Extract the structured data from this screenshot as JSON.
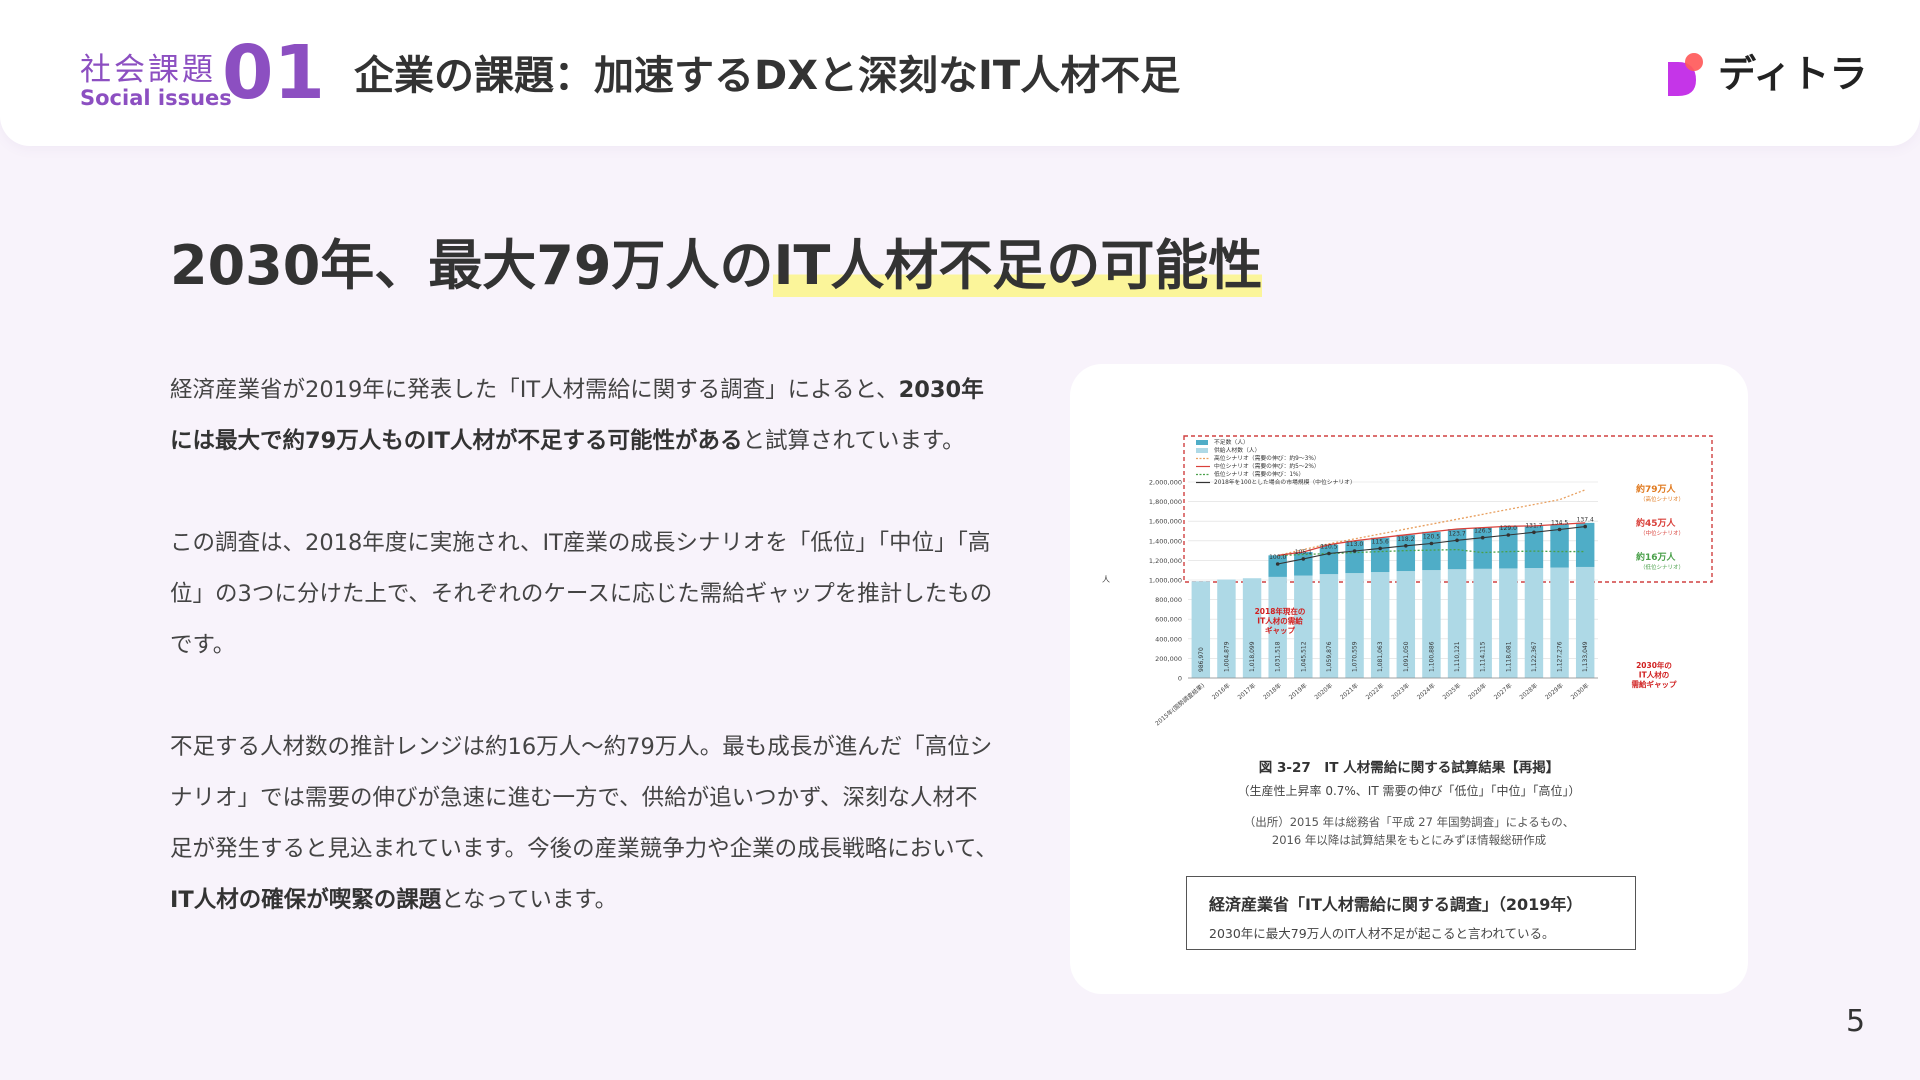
{
  "header": {
    "section_jp": "社会課題",
    "section_en": "Social issues",
    "section_num": "01",
    "title": "企業の課題：加速するDXと深刻なIT人材不足",
    "logo_text": "ディトラ",
    "logo_color": "#c535e8",
    "logo_dot_color": "#ff5a5a"
  },
  "main": {
    "title_prefix": "2030年、最大79万人の",
    "title_highlight": "IT人材不足の可能性",
    "p1_a": "経済産業省が2019年に発表した「IT人材需給に関する調査」によると、",
    "p1_b": "2030年には最大で約79万人ものIT人材が不足する可能性がある",
    "p1_c": "と試算されています。",
    "p2": " この調査は、2018年度に実施され、IT産業の成長シナリオを「低位」「中位」「高位」の3つに分けた上で、それぞれのケースに応じた需給ギャップを推計したものです。",
    "p3_a": "不足する人材数の推計レンジは約16万人〜約79万人。最も成長が進んだ「高位シナリオ」では需要の伸びが急速に進む一方で、供給が追いつかず、深刻な人材不足が発生すると見込まれています。今後の産業競争力や企業の成長戦略において、",
    "p3_b": "IT人材の確保が喫緊の課題",
    "p3_c": "となっています。"
  },
  "figure": {
    "title": "図 3-27　IT 人材需給に関する試算結果【再掲】",
    "subtitle": "（生産性上昇率 0.7%、IT 需要の伸び「低位」「中位」「高位」）",
    "source_1": "（出所）2015 年は総務省「平成 27 年国勢調査」によるもの、",
    "source_2": "2016 年以降は試算結果をもとにみずほ情報総研作成",
    "caption_title": "経済産業省「IT人材需給に関する調査」（2019年）",
    "caption_text": "2030年に最大79万人のIT人材不足が起こると言われている。"
  },
  "chart_data": {
    "type": "bar",
    "ylabel": "人",
    "ylim": [
      0,
      2000000
    ],
    "yticks": [
      "0",
      "200,000",
      "400,000",
      "600,000",
      "800,000",
      "1,000,000",
      "1,200,000",
      "1,400,000",
      "1,600,000",
      "1,800,000",
      "2,000,000"
    ],
    "categories": [
      "2015年(国勢調査結果)",
      "2016年",
      "2017年",
      "2018年",
      "2019年",
      "2020年",
      "2021年",
      "2022年",
      "2023年",
      "2024年",
      "2025年",
      "2026年",
      "2027年",
      "2028年",
      "2029年",
      "2030年"
    ],
    "supply_labels": [
      "986,970",
      "1,004,879",
      "1,018,099",
      "1,031,518",
      "1,045,512",
      "1,059,876",
      "1,070,559",
      "1,081,063",
      "1,091,050",
      "1,100,886",
      "1,110,121",
      "1,114,115",
      "1,118,081",
      "1,122,367",
      "1,127,276",
      "1,133,049"
    ],
    "supply_values": [
      986970,
      1004879,
      1018099,
      1031518,
      1045512,
      1059876,
      1070559,
      1081063,
      1091050,
      1100886,
      1110121,
      1114115,
      1118081,
      1122367,
      1127276,
      1133049
    ],
    "shortage_values": [
      0,
      0,
      0,
      220000,
      240000,
      300000,
      330000,
      350000,
      370000,
      390000,
      410000,
      420000,
      430000,
      430000,
      440000,
      450000
    ],
    "market_index": [
      null,
      null,
      null,
      "100.0",
      "105.1",
      "110.5",
      "113.0",
      "115.6",
      "118.2",
      "120.5",
      "123.7",
      "126.3",
      "129.0",
      "131.7",
      "134.5",
      "137.4"
    ],
    "high_demand": [
      null,
      null,
      null,
      1250000,
      1310000,
      1370000,
      1420000,
      1470000,
      1520000,
      1570000,
      1620000,
      1670000,
      1720000,
      1770000,
      1820000,
      1920000
    ],
    "low_demand": [
      null,
      null,
      null,
      1250000,
      1260000,
      1270000,
      1280000,
      1290000,
      1300000,
      1305000,
      1310000,
      1280000,
      1290000,
      1295000,
      1290000,
      1290000
    ],
    "legend": [
      "不足数（人）",
      "供給人材数（人）",
      "高位シナリオ（需要の伸び：約9〜3%）",
      "中位シナリオ（需要の伸び：約5〜2%）",
      "低位シナリオ（需要の伸び：1%）",
      "2018年を100とした場合の市場規模（中位シナリオ）"
    ],
    "annotations": {
      "gap_2018": "2018年現在の\nIT人材の需給\nギャップ",
      "gap_2030": "2030年の\nIT人材の\n需給ギャップ",
      "high": "約79万人",
      "high_sub": "（高位シナリオ）",
      "mid": "約45万人",
      "mid_sub": "（中位シナリオ）",
      "low": "約16万人",
      "low_sub": "（低位シナリオ）"
    },
    "colors": {
      "supply": "#aed9e6",
      "shortage": "#4fadc7",
      "high": "#e8a060",
      "mid": "#d9403a",
      "low": "#4aa04a",
      "market": "#333333",
      "note_red": "#d02020"
    }
  },
  "page": {
    "number": "5"
  }
}
